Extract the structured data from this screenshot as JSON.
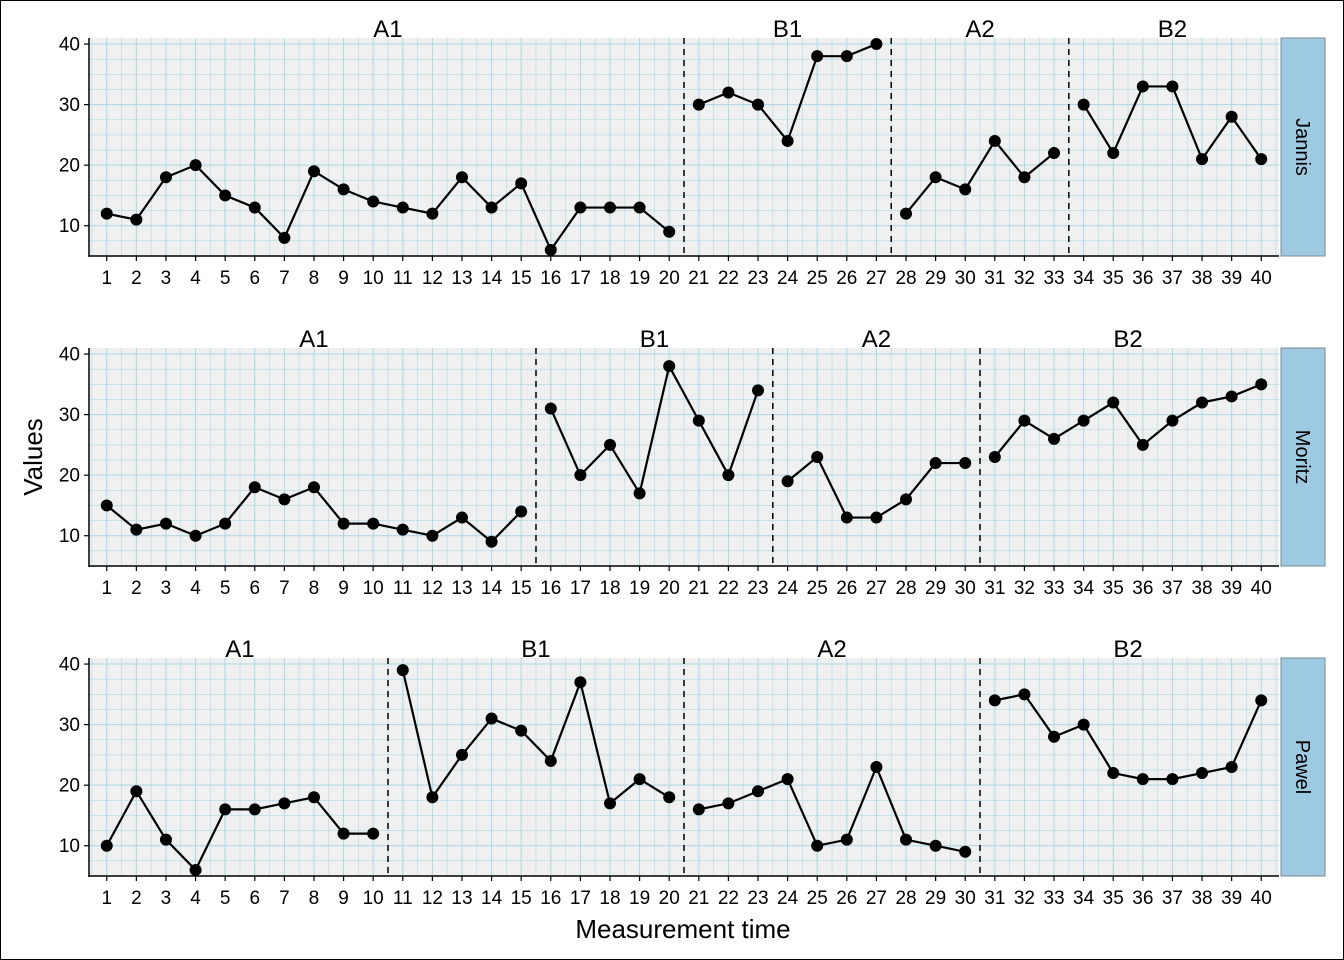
{
  "chart_data": {
    "type": "line",
    "xlabel": "Measurement time",
    "ylabel": "Values",
    "ylim": [
      5,
      41
    ],
    "yticks": [
      10,
      20,
      30,
      40
    ],
    "xlim": [
      0.4,
      40.6
    ],
    "xticks": [
      1,
      2,
      3,
      4,
      5,
      6,
      7,
      8,
      9,
      10,
      11,
      12,
      13,
      14,
      15,
      16,
      17,
      18,
      19,
      20,
      21,
      22,
      23,
      24,
      25,
      26,
      27,
      28,
      29,
      30,
      31,
      32,
      33,
      34,
      35,
      36,
      37,
      38,
      39,
      40
    ],
    "grid": true,
    "panels": [
      {
        "case": "Jannis",
        "phases": [
          {
            "label": "A1",
            "start": 1,
            "end": 20
          },
          {
            "label": "B1",
            "start": 21,
            "end": 27
          },
          {
            "label": "A2",
            "start": 28,
            "end": 33
          },
          {
            "label": "B2",
            "start": 34,
            "end": 40
          }
        ],
        "values": [
          12,
          11,
          18,
          20,
          15,
          13,
          8,
          19,
          16,
          14,
          13,
          12,
          18,
          13,
          17,
          6,
          13,
          13,
          13,
          9,
          30,
          32,
          30,
          24,
          38,
          38,
          40,
          12,
          18,
          16,
          24,
          18,
          22,
          30,
          22,
          33,
          33,
          21,
          28,
          21
        ]
      },
      {
        "case": "Moritz",
        "phases": [
          {
            "label": "A1",
            "start": 1,
            "end": 15
          },
          {
            "label": "B1",
            "start": 16,
            "end": 23
          },
          {
            "label": "A2",
            "start": 24,
            "end": 30
          },
          {
            "label": "B2",
            "start": 31,
            "end": 40
          }
        ],
        "values": [
          15,
          11,
          12,
          10,
          12,
          18,
          16,
          18,
          12,
          12,
          11,
          10,
          13,
          9,
          14,
          31,
          20,
          25,
          17,
          38,
          29,
          20,
          34,
          19,
          23,
          13,
          13,
          16,
          22,
          22,
          23,
          29,
          26,
          29,
          32,
          25,
          29,
          32,
          33,
          35
        ]
      },
      {
        "case": "Pawel",
        "phases": [
          {
            "label": "A1",
            "start": 1,
            "end": 10
          },
          {
            "label": "B1",
            "start": 11,
            "end": 20
          },
          {
            "label": "A2",
            "start": 21,
            "end": 30
          },
          {
            "label": "B2",
            "start": 31,
            "end": 40
          }
        ],
        "values": [
          10,
          19,
          11,
          6,
          16,
          16,
          17,
          18,
          12,
          12,
          39,
          18,
          25,
          31,
          29,
          24,
          37,
          17,
          21,
          18,
          16,
          17,
          19,
          21,
          10,
          11,
          23,
          11,
          10,
          9,
          34,
          35,
          28,
          30,
          22,
          21,
          21,
          22,
          23,
          34
        ]
      }
    ]
  },
  "colors": {
    "panel_bg": "#f0f0f0",
    "grid": "#add8e6",
    "strip": "#9ecae1",
    "line": "#000000",
    "point": "#000000"
  }
}
